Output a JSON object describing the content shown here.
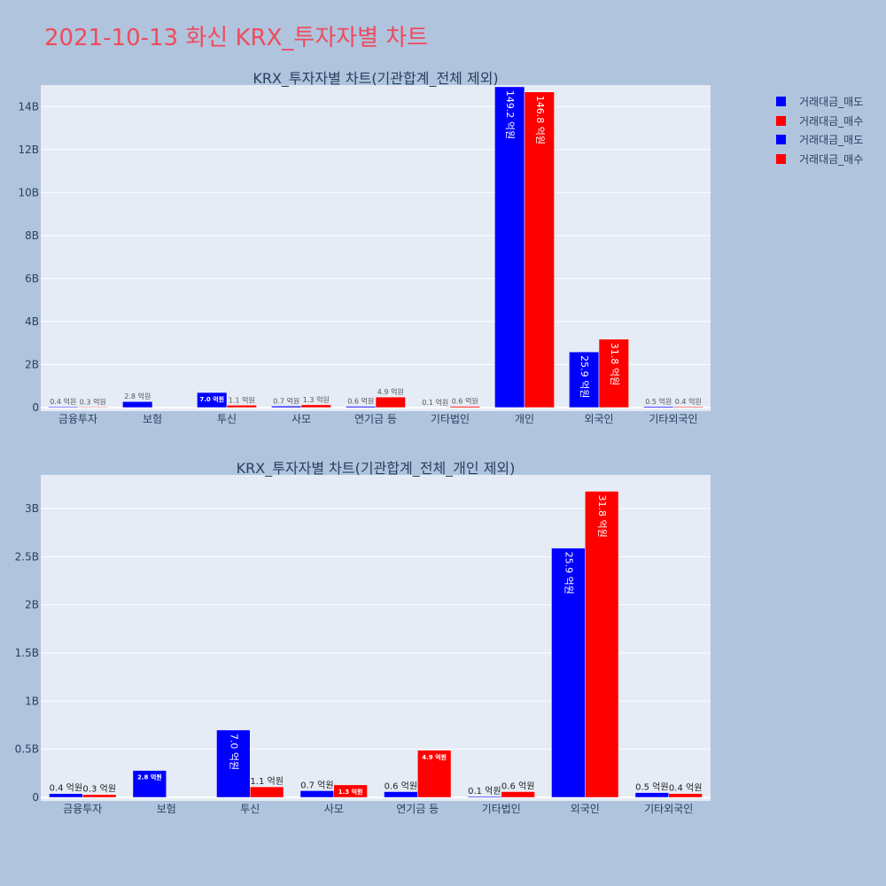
{
  "page": {
    "title": "2021-10-13 화신 KRX_투자자별 차트"
  },
  "colors": {
    "background": "#b0c4de",
    "plot_background": "#e5ecf6",
    "title": "#ef4b5c",
    "sell": "#0000ff",
    "buy": "#ff0000"
  },
  "legend": {
    "items": [
      {
        "label": "거래대금_매도",
        "color": "#0000ff"
      },
      {
        "label": "거래대금_매수",
        "color": "#ff0000"
      },
      {
        "label": "거래대금_매도",
        "color": "#0000ff"
      },
      {
        "label": "거래대금_매수",
        "color": "#ff0000"
      }
    ]
  },
  "chart_data": [
    {
      "type": "bar",
      "title": "KRX_투자자별 차트(기관합계_전체 제외)",
      "categories": [
        "금융투자",
        "보험",
        "투신",
        "사모",
        "연기금 등",
        "기타법인",
        "개인",
        "외국인",
        "기타외국인"
      ],
      "ylim": [
        0,
        15
      ],
      "yticks": [
        0,
        2,
        4,
        6,
        8,
        10,
        12,
        14
      ],
      "ytick_labels": [
        "0",
        "2B",
        "4B",
        "6B",
        "8B",
        "10B",
        "12B",
        "14B"
      ],
      "grid": true,
      "legend_position": "top-right",
      "series": [
        {
          "name": "거래대금_매도",
          "color": "#0000ff",
          "values": [
            0.04,
            0.28,
            0.7,
            0.07,
            0.06,
            0.01,
            14.92,
            2.59,
            0.05
          ],
          "labels": [
            "0.4 억원",
            "2.8 억원",
            "7.0 억원",
            "0.7 억원",
            "0.6 억원",
            "0.1 억원",
            "149.2 억원",
            "25.9 억원",
            "0.5 억원"
          ]
        },
        {
          "name": "거래대금_매수",
          "color": "#ff0000",
          "values": [
            0.03,
            0,
            0.11,
            0.13,
            0.49,
            0.06,
            14.68,
            3.18,
            0.04
          ],
          "labels": [
            "0.3 억원",
            "",
            "1.1 억원",
            "1.3 억원",
            "4.9 억원",
            "0.6 억원",
            "146.8 억원",
            "31.8 억원",
            "0.4 억원"
          ]
        }
      ]
    },
    {
      "type": "bar",
      "title": "KRX_투자자별 차트(기관합계_전체_개인 제외)",
      "categories": [
        "금융투자",
        "보험",
        "투신",
        "사모",
        "연기금 등",
        "기타법인",
        "외국인",
        "기타외국인"
      ],
      "ylim": [
        0,
        3.35
      ],
      "yticks": [
        0,
        0.5,
        1,
        1.5,
        2,
        2.5,
        3
      ],
      "ytick_labels": [
        "0",
        "0.5B",
        "1B",
        "1.5B",
        "2B",
        "2.5B",
        "3B"
      ],
      "grid": true,
      "legend_position": "top-right",
      "series": [
        {
          "name": "거래대금_매도",
          "color": "#0000ff",
          "values": [
            0.04,
            0.28,
            0.7,
            0.07,
            0.06,
            0.01,
            2.59,
            0.05
          ],
          "labels": [
            "0.4 억원",
            "2.8 억원",
            "7.0 억원",
            "0.7 억원",
            "0.6 억원",
            "0.1 억원",
            "25.9 억원",
            "0.5 억원"
          ]
        },
        {
          "name": "거래대금_매수",
          "color": "#ff0000",
          "values": [
            0.03,
            0,
            0.11,
            0.13,
            0.49,
            0.06,
            3.18,
            0.04
          ],
          "labels": [
            "0.3 억원",
            "",
            "1.1 억원",
            "1.3 억원",
            "4.9 억원",
            "0.6 억원",
            "31.8 억원",
            "0.4 억원"
          ]
        }
      ]
    }
  ]
}
